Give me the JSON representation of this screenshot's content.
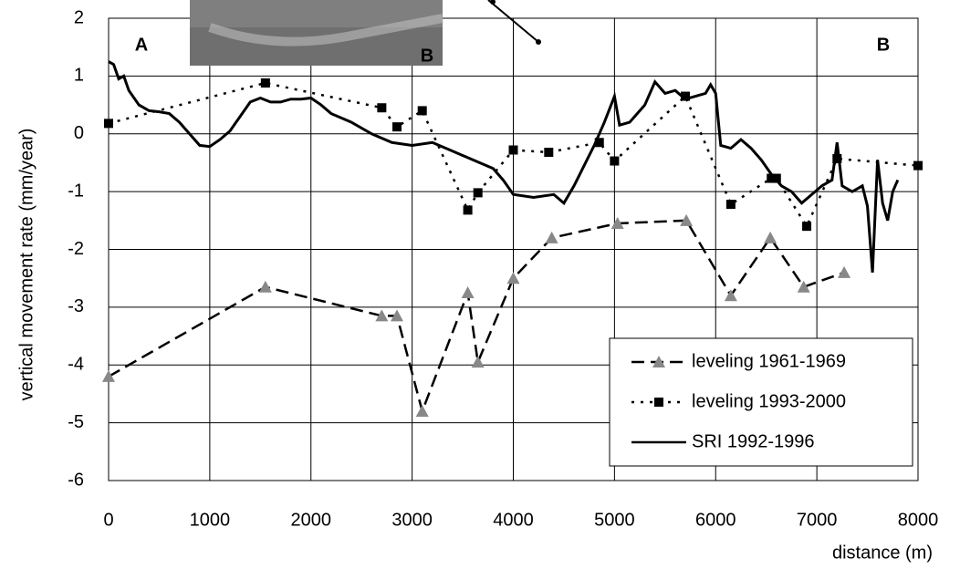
{
  "chart_data": {
    "type": "line",
    "x_label": "distance (m)",
    "y_label": "vertical movement rate (mm/year)",
    "annotations": [
      "A",
      "B",
      "B"
    ],
    "xlim": [
      0,
      8000
    ],
    "xticks": [
      0,
      1000,
      2000,
      3000,
      4000,
      5000,
      6000,
      7000,
      8000
    ],
    "ylim": [
      -6,
      2
    ],
    "yticks": [
      -6,
      -5,
      -4,
      -3,
      -2,
      -1,
      0,
      1,
      2
    ],
    "grid": true,
    "legend": "lower right",
    "series": [
      {
        "name": "leveling 1961-1969",
        "color": "#888888",
        "marker": "triangle",
        "dash": "dashed",
        "x": [
          0,
          1550,
          2700,
          2850,
          3100,
          3550,
          3650,
          4000,
          4380,
          5030,
          5710,
          6150,
          6540,
          6870,
          7270
        ],
        "values": [
          -4.2,
          -2.65,
          -3.15,
          -3.15,
          -4.8,
          -2.75,
          -3.95,
          -2.5,
          -1.8,
          -1.55,
          -1.5,
          -2.8,
          -1.8,
          -2.65,
          -2.4
        ]
      },
      {
        "name": "leveling 1993-2000",
        "color": "#000000",
        "marker": "square",
        "dash": "dotted",
        "x": [
          0,
          1550,
          2700,
          2850,
          3100,
          3550,
          3650,
          4000,
          4350,
          4850,
          5000,
          5700,
          6150,
          6550,
          6600,
          6900,
          7200,
          8000
        ],
        "values": [
          0.18,
          0.88,
          0.45,
          0.12,
          0.4,
          -1.32,
          -1.02,
          -0.28,
          -0.32,
          -0.15,
          -0.47,
          0.65,
          -1.22,
          -0.77,
          -0.77,
          -1.6,
          -0.43,
          -0.55
        ]
      },
      {
        "name": "SRI 1992-1996",
        "color": "#000000",
        "marker": "none",
        "dash": "solid",
        "x": [
          0,
          50,
          100,
          150,
          200,
          300,
          400,
          500,
          600,
          700,
          800,
          900,
          1000,
          1100,
          1200,
          1300,
          1400,
          1500,
          1600,
          1700,
          1800,
          1900,
          2000,
          2100,
          2200,
          2400,
          2600,
          2800,
          3000,
          3200,
          3400,
          3600,
          3800,
          3900,
          4000,
          4200,
          4400,
          4500,
          4600,
          4700,
          4800,
          4900,
          5000,
          5050,
          5150,
          5300,
          5400,
          5500,
          5600,
          5700,
          5800,
          5900,
          5950,
          6000,
          6050,
          6150,
          6250,
          6350,
          6450,
          6550,
          6650,
          6750,
          6850,
          6950,
          7050,
          7150,
          7200,
          7250,
          7350,
          7450,
          7500,
          7550,
          7600,
          7650,
          7700,
          7750,
          7800
        ],
        "values": [
          1.25,
          1.2,
          0.95,
          1.0,
          0.75,
          0.5,
          0.4,
          0.38,
          0.35,
          0.2,
          0.0,
          -0.2,
          -0.22,
          -0.1,
          0.05,
          0.3,
          0.55,
          0.62,
          0.55,
          0.55,
          0.6,
          0.6,
          0.62,
          0.5,
          0.35,
          0.2,
          0.0,
          -0.15,
          -0.2,
          -0.15,
          -0.3,
          -0.45,
          -0.6,
          -0.8,
          -1.05,
          -1.1,
          -1.05,
          -1.2,
          -0.9,
          -0.55,
          -0.2,
          0.2,
          0.65,
          0.15,
          0.2,
          0.5,
          0.9,
          0.7,
          0.75,
          0.6,
          0.65,
          0.7,
          0.85,
          0.7,
          -0.2,
          -0.25,
          -0.1,
          -0.25,
          -0.45,
          -0.7,
          -0.9,
          -1.0,
          -1.2,
          -1.05,
          -0.9,
          -0.8,
          -0.15,
          -0.9,
          -1.0,
          -0.9,
          -1.25,
          -2.4,
          -0.45,
          -1.2,
          -1.5,
          -1.0,
          -0.8
        ]
      }
    ]
  }
}
